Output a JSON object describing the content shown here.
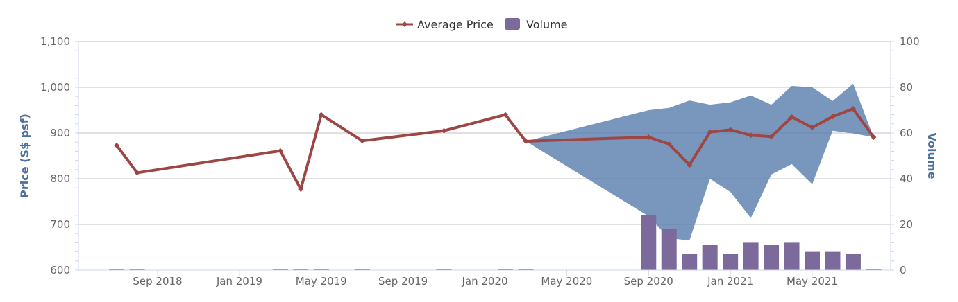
{
  "chart_data": {
    "type": "line+arearange+bar",
    "legend": {
      "position": "top-center",
      "items": [
        {
          "name": "Average Price",
          "color": "#9e4644",
          "symbol": "line-diamond"
        },
        {
          "name": "Volume",
          "color": "#7b6a9b",
          "symbol": "square"
        }
      ]
    },
    "yaxis_left": {
      "title": "Price (S$ psf)",
      "range": [
        600,
        1100
      ],
      "ticks": [
        600,
        700,
        800,
        900,
        1000,
        1100
      ],
      "tick_labels": [
        "600",
        "700",
        "800",
        "900",
        "1,000",
        "1,100"
      ]
    },
    "yaxis_right": {
      "title": "Volume",
      "range": [
        0,
        100
      ],
      "ticks": [
        0,
        20,
        40,
        60,
        80,
        100
      ],
      "tick_labels": [
        "0",
        "20",
        "40",
        "60",
        "80",
        "100"
      ]
    },
    "xaxis": {
      "range_months": [
        "2018-06",
        "2021-09"
      ],
      "ticks": [
        "2018-09",
        "2019-01",
        "2019-05",
        "2019-09",
        "2020-01",
        "2020-05",
        "2020-09",
        "2021-01",
        "2021-05"
      ],
      "tick_labels": [
        "Sep 2018",
        "Jan 2019",
        "May 2019",
        "Sep 2019",
        "Jan 2020",
        "May 2020",
        "Sep 2020",
        "Jan 2021",
        "May 2021"
      ]
    },
    "grid": true,
    "colors": {
      "price_line": "#9e4644",
      "range_area": "#5b7fae",
      "volume_bar": "#7b6a9b",
      "grid": "#c0c0c0",
      "axis": "#ccd6eb",
      "axis_title": "#4d6f9e"
    },
    "series": [
      {
        "name": "Average Price",
        "type": "line",
        "axis": "left",
        "points": [
          {
            "x": "2018-07",
            "y": 873
          },
          {
            "x": "2018-08",
            "y": 813
          },
          {
            "x": "2019-03",
            "y": 861
          },
          {
            "x": "2019-04",
            "y": 777
          },
          {
            "x": "2019-05",
            "y": 940
          },
          {
            "x": "2019-07",
            "y": 883
          },
          {
            "x": "2019-11",
            "y": 905
          },
          {
            "x": "2020-02",
            "y": 940
          },
          {
            "x": "2020-03",
            "y": 882
          },
          {
            "x": "2020-09",
            "y": 891
          },
          {
            "x": "2020-10",
            "y": 876
          },
          {
            "x": "2020-11",
            "y": 830
          },
          {
            "x": "2020-12",
            "y": 902
          },
          {
            "x": "2021-01",
            "y": 907
          },
          {
            "x": "2021-02",
            "y": 895
          },
          {
            "x": "2021-03",
            "y": 892
          },
          {
            "x": "2021-04",
            "y": 935
          },
          {
            "x": "2021-05",
            "y": 912
          },
          {
            "x": "2021-06",
            "y": 936
          },
          {
            "x": "2021-07",
            "y": 953
          },
          {
            "x": "2021-08",
            "y": 891
          }
        ]
      },
      {
        "name": "Price Range",
        "type": "arearange",
        "axis": "left",
        "points": [
          {
            "x": "2020-03",
            "low": 882,
            "high": 882
          },
          {
            "x": "2020-09",
            "low": 718,
            "high": 950
          },
          {
            "x": "2020-10",
            "low": 670,
            "high": 955
          },
          {
            "x": "2020-11",
            "low": 665,
            "high": 971
          },
          {
            "x": "2020-12",
            "low": 800,
            "high": 962
          },
          {
            "x": "2021-01",
            "low": 771,
            "high": 967
          },
          {
            "x": "2021-02",
            "low": 714,
            "high": 982
          },
          {
            "x": "2021-03",
            "low": 809,
            "high": 962
          },
          {
            "x": "2021-04",
            "low": 832,
            "high": 1003
          },
          {
            "x": "2021-05",
            "low": 788,
            "high": 1000
          },
          {
            "x": "2021-06",
            "low": 905,
            "high": 970
          },
          {
            "x": "2021-07",
            "low": 899,
            "high": 1008
          },
          {
            "x": "2021-08",
            "low": 891,
            "high": 891
          }
        ]
      },
      {
        "name": "Volume",
        "type": "bar",
        "axis": "right",
        "points": [
          {
            "x": "2018-07",
            "y": 1
          },
          {
            "x": "2018-08",
            "y": 1
          },
          {
            "x": "2019-03",
            "y": 1
          },
          {
            "x": "2019-04",
            "y": 1
          },
          {
            "x": "2019-05",
            "y": 1
          },
          {
            "x": "2019-07",
            "y": 1
          },
          {
            "x": "2019-11",
            "y": 1
          },
          {
            "x": "2020-02",
            "y": 1
          },
          {
            "x": "2020-03",
            "y": 1
          },
          {
            "x": "2020-09",
            "y": 24
          },
          {
            "x": "2020-10",
            "y": 18
          },
          {
            "x": "2020-11",
            "y": 7
          },
          {
            "x": "2020-12",
            "y": 11
          },
          {
            "x": "2021-01",
            "y": 7
          },
          {
            "x": "2021-02",
            "y": 12
          },
          {
            "x": "2021-03",
            "y": 11
          },
          {
            "x": "2021-04",
            "y": 12
          },
          {
            "x": "2021-05",
            "y": 8
          },
          {
            "x": "2021-06",
            "y": 8
          },
          {
            "x": "2021-07",
            "y": 7
          },
          {
            "x": "2021-08",
            "y": 1
          }
        ]
      }
    ]
  }
}
